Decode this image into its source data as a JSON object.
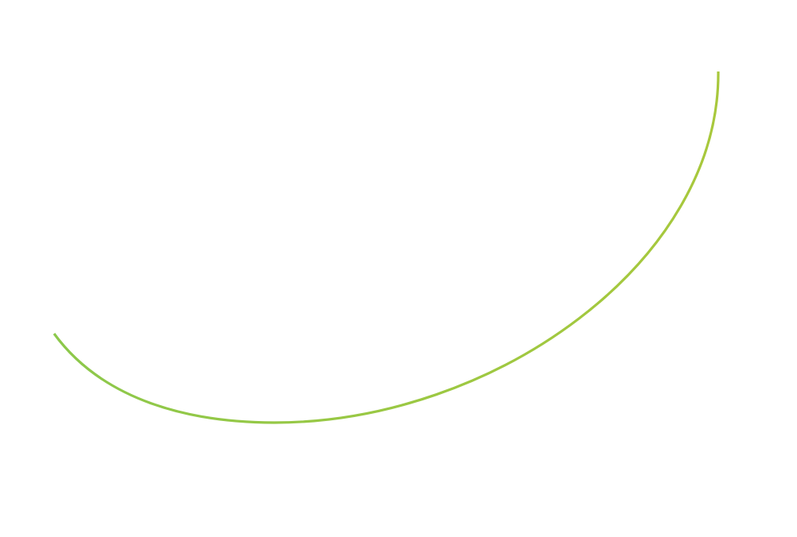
{
  "background": "#ffffff",
  "curve": {
    "color_start": "#8cc84b",
    "color_end": "#a8c83c"
  }
}
